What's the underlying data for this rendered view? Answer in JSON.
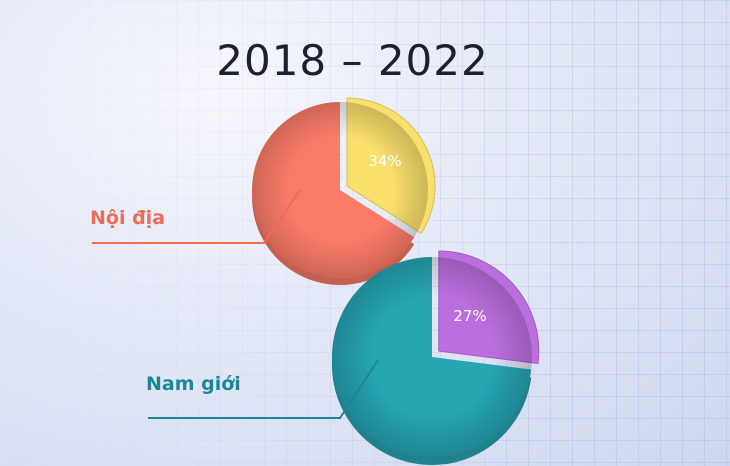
{
  "title": "2018 – 2022",
  "chart_data": [
    {
      "type": "pie",
      "name": "Nội địa",
      "slice_value": 34,
      "slice_label": "34%",
      "colors": {
        "slice": "#f9df6b",
        "rest": "#fb7b68",
        "line": "#f06a58"
      }
    },
    {
      "type": "pie",
      "name": "Nam giới",
      "slice_value": 27,
      "slice_label": "27%",
      "colors": {
        "slice": "#bb6fdf",
        "rest": "#26a5b3",
        "line": "#1b8796"
      }
    }
  ]
}
